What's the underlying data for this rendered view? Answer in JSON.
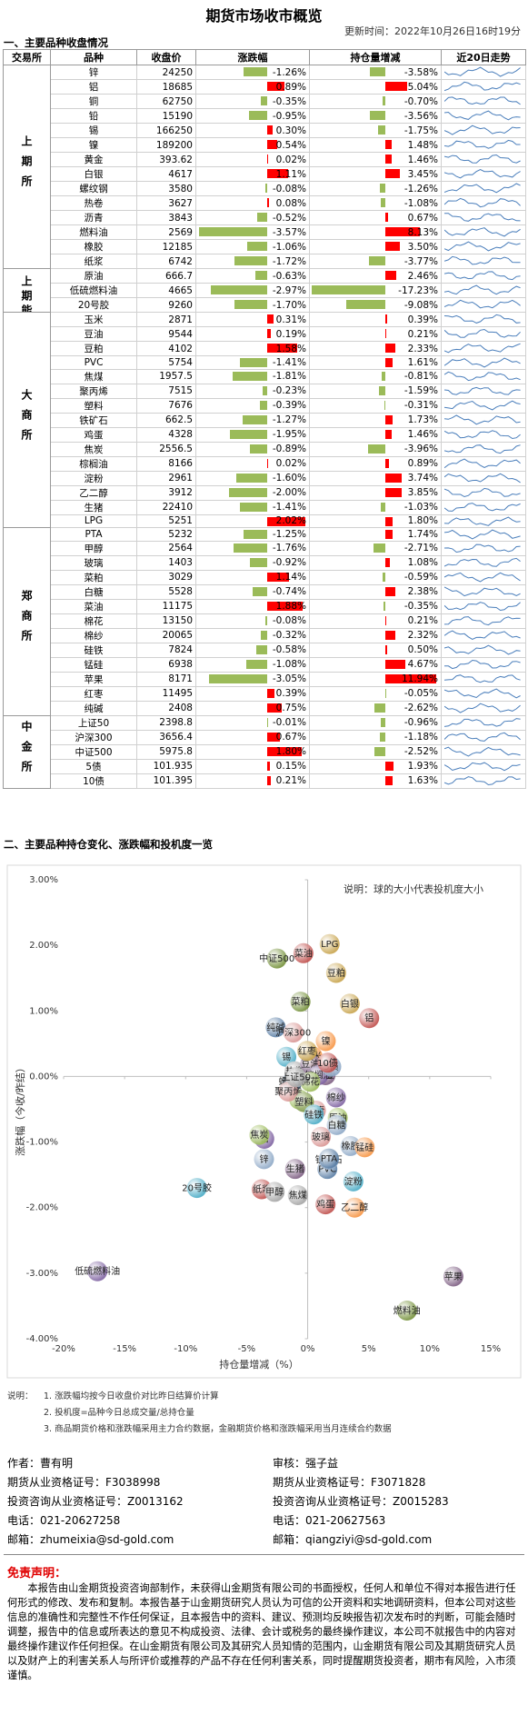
{
  "header": {
    "title": "期货市场收市概览",
    "update_time": "更新时间：2022年10月26日16时19分"
  },
  "section1": "一、主要品种收盘情况",
  "table": {
    "columns": [
      "交易所",
      "品种",
      "收盘价",
      "涨跌幅",
      "持仓量增减",
      "近20日走势"
    ],
    "groups": [
      {
        "exchange": "上期所",
        "rows": [
          [
            "锌",
            "24250",
            "-1.26%",
            "-3.58%"
          ],
          [
            "铝",
            "18685",
            "0.89%",
            "5.04%"
          ],
          [
            "铜",
            "62750",
            "-0.35%",
            "-0.70%"
          ],
          [
            "铅",
            "15190",
            "-0.95%",
            "-3.56%"
          ],
          [
            "锡",
            "166250",
            "0.30%",
            "-1.75%"
          ],
          [
            "镍",
            "189200",
            "0.54%",
            "1.48%"
          ],
          [
            "黄金",
            "393.62",
            "0.02%",
            "1.46%"
          ],
          [
            "白银",
            "4617",
            "1.11%",
            "3.45%"
          ],
          [
            "螺纹钢",
            "3580",
            "-0.08%",
            "-1.26%"
          ],
          [
            "热卷",
            "3627",
            "0.08%",
            "-1.08%"
          ],
          [
            "沥青",
            "3843",
            "-0.52%",
            "0.67%"
          ],
          [
            "燃料油",
            "2569",
            "-3.57%",
            "8.13%"
          ],
          [
            "橡胶",
            "12185",
            "-1.06%",
            "3.50%"
          ],
          [
            "纸浆",
            "6742",
            "-1.72%",
            "-3.77%"
          ]
        ]
      },
      {
        "exchange": "上期能源",
        "rows": [
          [
            "原油",
            "666.7",
            "-0.63%",
            "2.46%"
          ],
          [
            "低硫燃料油",
            "4665",
            "-2.97%",
            "-17.23%"
          ],
          [
            "20号胶",
            "9260",
            "-1.70%",
            "-9.08%"
          ]
        ]
      },
      {
        "exchange": "大商所",
        "rows": [
          [
            "玉米",
            "2871",
            "0.31%",
            "0.39%"
          ],
          [
            "豆油",
            "9544",
            "0.19%",
            "0.21%"
          ],
          [
            "豆粕",
            "4102",
            "1.58%",
            "2.33%"
          ],
          [
            "PVC",
            "5754",
            "-1.41%",
            "1.61%"
          ],
          [
            "焦煤",
            "1957.5",
            "-1.81%",
            "-0.81%"
          ],
          [
            "聚丙烯",
            "7515",
            "-0.23%",
            "-1.59%"
          ],
          [
            "塑料",
            "7676",
            "-0.39%",
            "-0.31%"
          ],
          [
            "铁矿石",
            "662.5",
            "-1.27%",
            "1.73%"
          ],
          [
            "鸡蛋",
            "4328",
            "-1.95%",
            "1.46%"
          ],
          [
            "焦炭",
            "2556.5",
            "-0.89%",
            "-3.96%"
          ],
          [
            "棕榈油",
            "8166",
            "0.02%",
            "0.89%"
          ],
          [
            "淀粉",
            "2961",
            "-1.60%",
            "3.74%"
          ],
          [
            "乙二醇",
            "3912",
            "-2.00%",
            "3.85%"
          ],
          [
            "生猪",
            "22410",
            "-1.41%",
            "-1.03%"
          ],
          [
            "LPG",
            "5251",
            "2.02%",
            "1.80%"
          ]
        ]
      },
      {
        "exchange": "郑商所",
        "rows": [
          [
            "PTA",
            "5232",
            "-1.25%",
            "1.74%"
          ],
          [
            "甲醇",
            "2564",
            "-1.76%",
            "-2.71%"
          ],
          [
            "玻璃",
            "1403",
            "-0.92%",
            "1.08%"
          ],
          [
            "菜粕",
            "3029",
            "1.14%",
            "-0.59%"
          ],
          [
            "白糖",
            "5528",
            "-0.74%",
            "2.38%"
          ],
          [
            "菜油",
            "11175",
            "1.88%",
            "-0.35%"
          ],
          [
            "棉花",
            "13150",
            "-0.08%",
            "0.21%"
          ],
          [
            "棉纱",
            "20065",
            "-0.32%",
            "2.32%"
          ],
          [
            "硅铁",
            "7824",
            "-0.58%",
            "0.50%"
          ],
          [
            "锰硅",
            "6938",
            "-1.08%",
            "4.67%"
          ],
          [
            "苹果",
            "8171",
            "-3.05%",
            "11.94%"
          ],
          [
            "红枣",
            "11495",
            "0.39%",
            "-0.05%"
          ],
          [
            "纯碱",
            "2408",
            "0.75%",
            "-2.62%"
          ]
        ]
      },
      {
        "exchange": "中金所",
        "rows": [
          [
            "上证50",
            "2398.8",
            "-0.01%",
            "-0.96%"
          ],
          [
            "沪深300",
            "3656.4",
            "0.67%",
            "-1.18%"
          ],
          [
            "中证500",
            "5975.8",
            "1.80%",
            "-2.52%"
          ],
          [
            "5债",
            "101.935",
            "0.15%",
            "1.93%"
          ],
          [
            "10债",
            "101.395",
            "0.21%",
            "1.63%"
          ]
        ]
      }
    ]
  },
  "section2": "二、主要品种持仓变化、涨跌幅和投机度一览",
  "chart_data": {
    "type": "bubble",
    "note": "说明：球的大小代表投机度大小",
    "x_label": "持仓量增减（%）",
    "y_label": "涨跌幅（今收/昨结）",
    "xlim": [
      -20,
      15
    ],
    "ylim": [
      -4,
      3
    ],
    "xticks": [
      {
        "value": -20,
        "label": "-20%"
      },
      {
        "value": -15,
        "label": "-15%"
      },
      {
        "value": -10,
        "label": "-10%"
      },
      {
        "value": -5,
        "label": "-5%"
      },
      {
        "value": 0,
        "label": "0%"
      },
      {
        "value": 5,
        "label": "5%"
      },
      {
        "value": 10,
        "label": "10%"
      },
      {
        "value": 15,
        "label": "15%"
      }
    ],
    "yticks": [
      {
        "value": 3,
        "label": "3.00%"
      },
      {
        "value": 2,
        "label": "2.00%"
      },
      {
        "value": 1,
        "label": "1.00%"
      },
      {
        "value": 0,
        "label": "0.00%"
      },
      {
        "value": -1,
        "label": "-1.00%"
      },
      {
        "value": -2,
        "label": "-2.00%"
      },
      {
        "value": -3,
        "label": "-3.00%"
      },
      {
        "value": -4,
        "label": "-4.00%"
      }
    ]
  },
  "notes": {
    "label": "说明：",
    "items": [
      "1. 涨跌幅均按今日收盘价对比昨日结算价计算",
      "2. 投机度=品种今日总成交量/总持仓量",
      "3. 商品期货价格和涨跌幅采用主力合约数据，金融期货价格和涨跌幅采用当月连续合约数据"
    ]
  },
  "authors": {
    "left": [
      "作者：曹有明",
      "期货从业资格证号：F3038998",
      "投资咨询从业资格证号：Z0013162",
      "电话：021-20627258",
      "邮箱：zhumeixia@sd-gold.com"
    ],
    "right": [
      "审核：强子益",
      "期货从业资格证号：F3071828",
      "投资咨询从业资格证号：Z0015283",
      "电话：021-20627563",
      "邮箱：qiangziyi@sd-gold.com"
    ]
  },
  "disclaimer": {
    "title": "免责声明：",
    "text": "本报告由山金期货投资咨询部制作，未获得山金期货有限公司的书面授权，任何人和单位不得对本报告进行任何形式的修改、发布和复制。本报告基于山金期货研究人员认为可信的公开资料和实地调研资料，但本公司对这些信息的准确性和完整性不作任何保证，且本报告中的资料、建议、预测均反映报告初次发布时的判断，可能会随时调整，报告中的信息或所表达的意见不构成投资、法律、会计或税务的最终操作建议，本公司不就报告中的内容对最终操作建议作任何担保。在山金期货有限公司及其研究人员知情的范围内，山金期货有限公司及其期货研究人员以及财产上的利害关系人与所评价或推荐的产品不存在任何利害关系，同时提醒期货投资者，期市有风险，入市须谨慎。"
  }
}
